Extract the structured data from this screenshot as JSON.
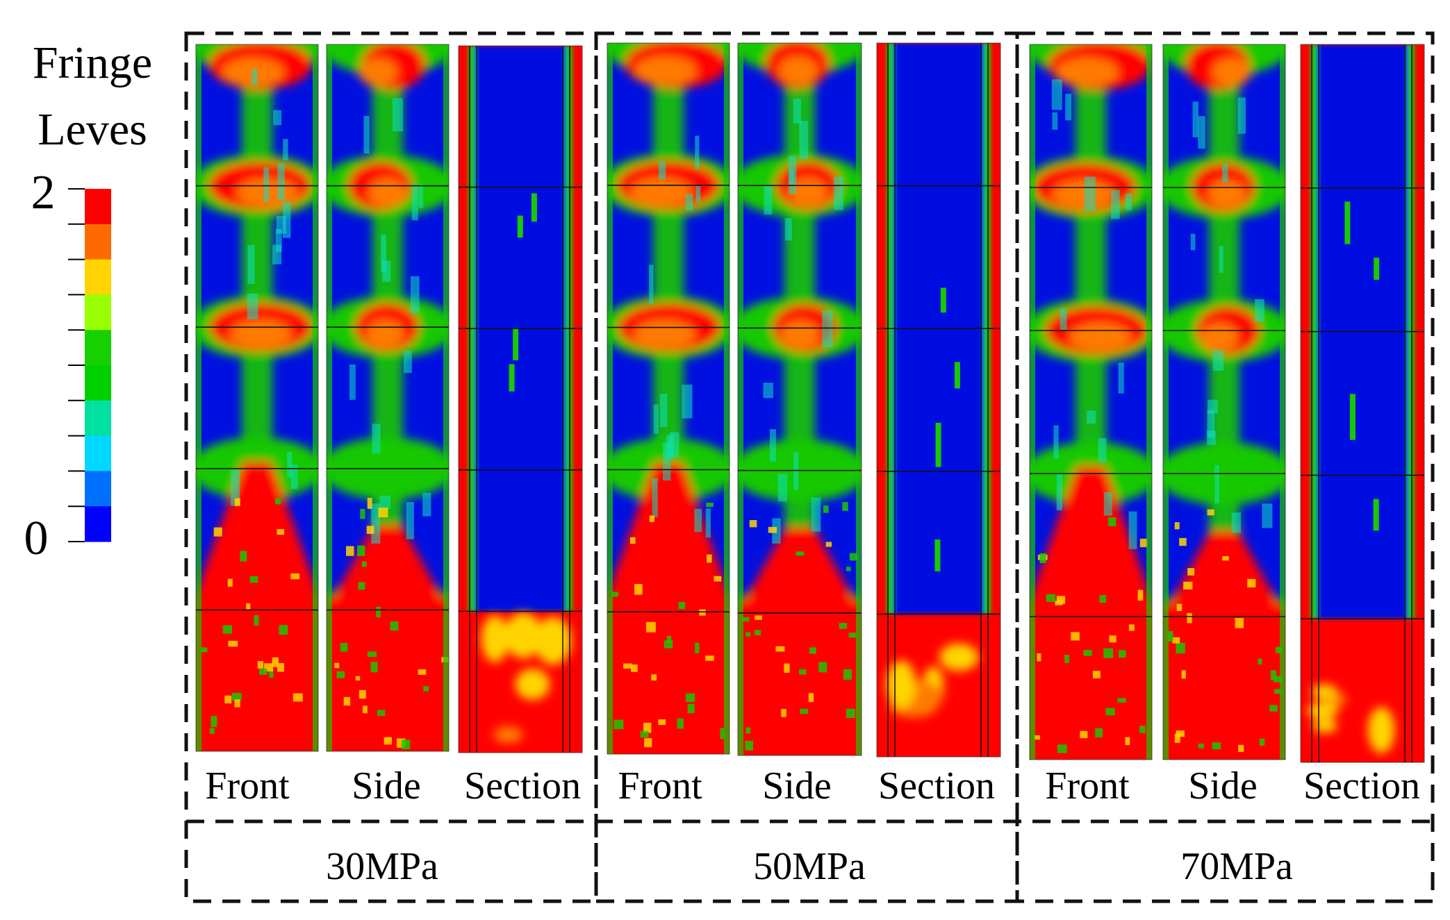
{
  "legend": {
    "title_line1": "Fringe",
    "title_line2": "Leves",
    "max_label": "2",
    "min_label": "0",
    "colors": [
      "#ff0000",
      "#ff6a00",
      "#ffd400",
      "#9aff00",
      "#18d000",
      "#00d000",
      "#00e0a0",
      "#00d8ff",
      "#0070ff",
      "#0000ff"
    ]
  },
  "view_labels": [
    "Front",
    "Side",
    "Section"
  ],
  "groups": [
    {
      "label": "30MPa"
    },
    {
      "label": "50MPa"
    },
    {
      "label": "70MPa"
    }
  ],
  "palette": {
    "red": "#ff0000",
    "orange": "#ff7a00",
    "yellow": "#ffd400",
    "green": "#19c800",
    "cyan": "#10e0c0",
    "blue": "#0010e0",
    "line": "#111111"
  }
}
